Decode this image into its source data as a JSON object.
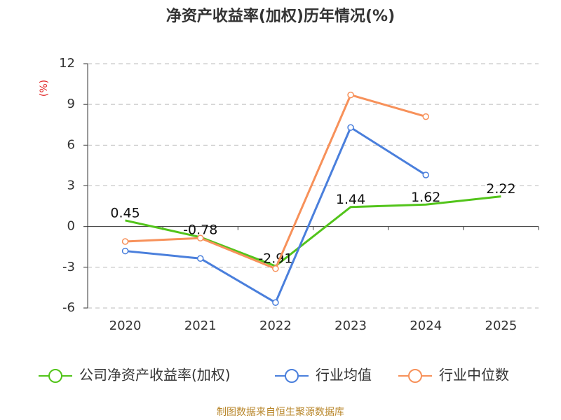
{
  "chart_data": {
    "type": "line",
    "title": "净资产收益率(加权)历年情况(%)",
    "y_label": "(%)",
    "categories": [
      "2020",
      "2021",
      "2022",
      "2023",
      "2024",
      "2025"
    ],
    "series": [
      {
        "name": "公司净资产收益率(加权)",
        "color": "#52c41a",
        "values": [
          0.45,
          -0.78,
          -2.91,
          1.44,
          1.62,
          2.22
        ],
        "labels": true
      },
      {
        "name": "行业均值",
        "color": "#4a7fdc",
        "values": [
          -1.8,
          -2.35,
          -5.6,
          7.3,
          3.8,
          null
        ]
      },
      {
        "name": "行业中位数",
        "color": "#f7915a",
        "values": [
          -1.1,
          -0.85,
          -3.1,
          9.7,
          8.1,
          null
        ]
      }
    ],
    "ylim": [
      -6,
      12
    ],
    "yticks": [
      -6,
      -3,
      0,
      3,
      6,
      9,
      12
    ],
    "grid": true,
    "source": "制图数据来自恒生聚源数据库"
  }
}
